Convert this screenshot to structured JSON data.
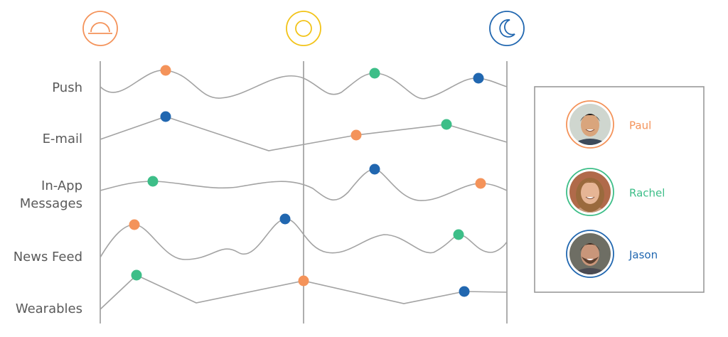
{
  "channels": [
    [
      "Push"
    ],
    [
      "E-mail"
    ],
    [
      "In-App",
      "Messages"
    ],
    [
      "News Feed"
    ],
    [
      "Wearables"
    ]
  ],
  "people": [
    {
      "name": "Paul",
      "color": "#f4935a"
    },
    {
      "name": "Rachel",
      "color": "#3dbe88"
    },
    {
      "name": "Jason",
      "color": "#2167b0"
    }
  ]
}
